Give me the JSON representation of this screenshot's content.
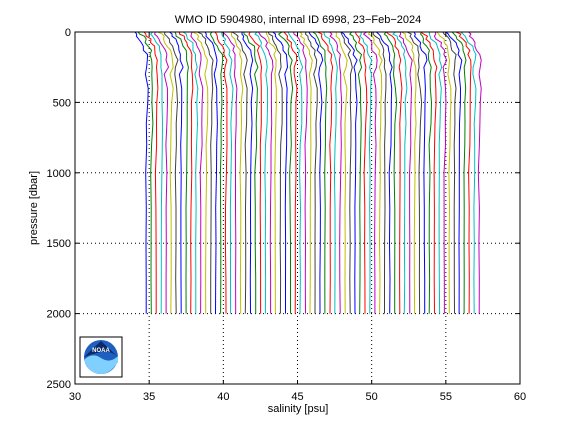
{
  "chart_data": {
    "type": "line",
    "title": "WMO ID 5904980, internal ID 6998, 23−Feb−2024",
    "xlabel": "salinity [psu]",
    "ylabel": "pressure [dbar]",
    "xlim": [
      30,
      60
    ],
    "ylim": [
      0,
      2500
    ],
    "y_reversed": true,
    "grid": true,
    "grid_style": "dotted",
    "xticks": [
      30,
      35,
      40,
      45,
      50,
      55,
      60
    ],
    "yticks": [
      0,
      500,
      1000,
      1500,
      2000,
      2500
    ],
    "xtick_labels": [
      "30",
      "35",
      "40",
      "45",
      "50",
      "55",
      "60"
    ],
    "ytick_labels": [
      "0",
      "500",
      "1000",
      "1500",
      "2000",
      "2500"
    ],
    "profiles": {
      "count": 68,
      "first_deep_salinity": 34.8,
      "offset_step": 0.335,
      "surface_salinity_delta": -0.75,
      "max_pressure": 2000,
      "colors": [
        "#0000ff",
        "#008000",
        "#ff0000",
        "#00bfbf",
        "#bf00bf",
        "#bfbf00",
        "#404040"
      ]
    },
    "logo": "noaa-logo"
  }
}
